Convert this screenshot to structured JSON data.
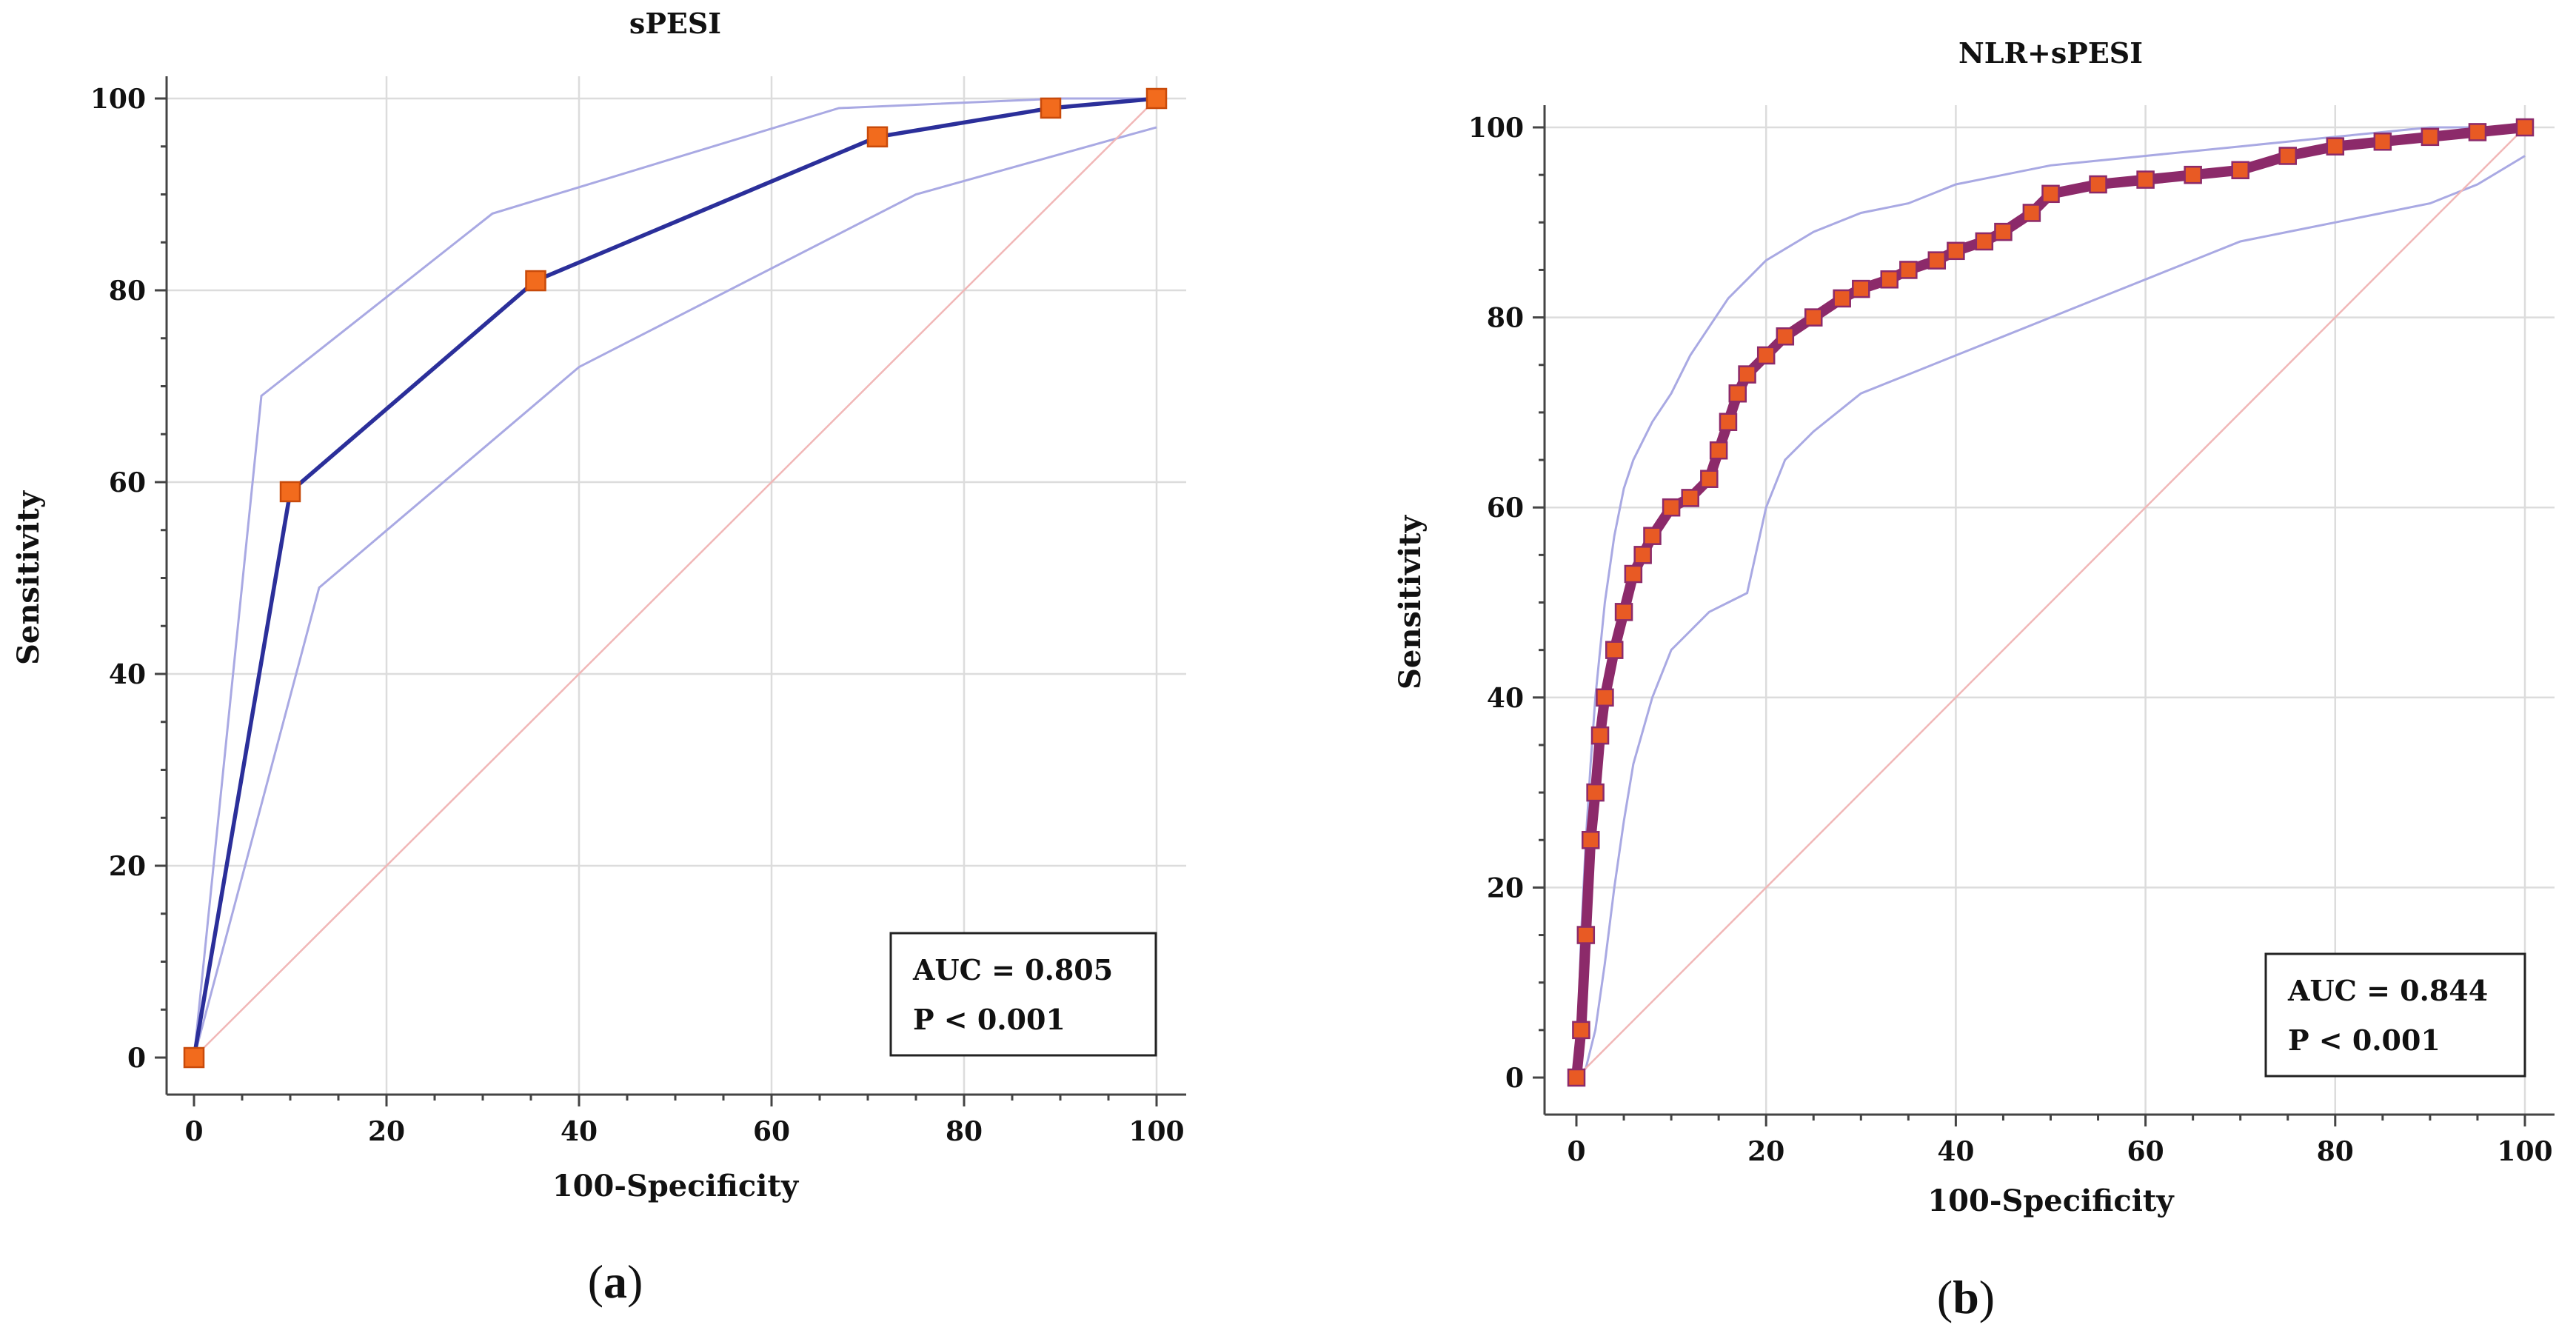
{
  "chart_data": [
    {
      "panel_label": "a",
      "type": "line",
      "title": "sPESI",
      "xlabel": "100-Specificity",
      "ylabel": "Sensitivity",
      "xlim": [
        0,
        100
      ],
      "ylim": [
        0,
        100
      ],
      "xticks": [
        0,
        20,
        40,
        60,
        80,
        100
      ],
      "yticks": [
        0,
        20,
        40,
        60,
        80,
        100
      ],
      "grid": true,
      "colors": {
        "roc": "#2b2f9a",
        "ci": "#a9a9e3",
        "ref": "#f1b7b7",
        "marker": "#f26b1d",
        "marker_edge": "#c84a0a"
      },
      "series": [
        {
          "name": "ROC",
          "x": [
            0,
            10,
            35.5,
            71,
            89,
            100
          ],
          "y": [
            0,
            59,
            81,
            96,
            99,
            100
          ],
          "markers": true
        },
        {
          "name": "upper 95% CI",
          "x": [
            0,
            7,
            31,
            67,
            90,
            100
          ],
          "y": [
            0,
            69,
            88,
            99,
            100,
            100
          ]
        },
        {
          "name": "lower 95% CI",
          "x": [
            0,
            13,
            40,
            75,
            100
          ],
          "y": [
            0,
            49,
            72,
            90,
            97
          ]
        },
        {
          "name": "reference",
          "x": [
            0,
            100
          ],
          "y": [
            0,
            100
          ]
        }
      ],
      "annotation": {
        "auc": "AUC = 0.805",
        "p": "P < 0.001"
      },
      "legend_position": "bottom-right"
    },
    {
      "panel_label": "b",
      "type": "line",
      "title": "NLR+sPESI",
      "xlabel": "100-Specificity",
      "ylabel": "Sensitivity",
      "xlim": [
        0,
        100
      ],
      "ylim": [
        0,
        100
      ],
      "xticks": [
        0,
        20,
        40,
        60,
        80,
        100
      ],
      "yticks": [
        0,
        20,
        40,
        60,
        80,
        100
      ],
      "grid": true,
      "colors": {
        "roc": "#8c2a6a",
        "ci": "#a9a9e3",
        "ref": "#f1b7b7",
        "marker": "#e85a24",
        "marker_edge": "#8c2a6a"
      },
      "series": [
        {
          "name": "ROC",
          "x": [
            0,
            0.5,
            1,
            1.5,
            2,
            2.5,
            3,
            4,
            5,
            6,
            7,
            8,
            10,
            12,
            14,
            15,
            16,
            17,
            18,
            20,
            22,
            25,
            28,
            30,
            33,
            35,
            38,
            40,
            43,
            45,
            48,
            50,
            55,
            60,
            65,
            70,
            75,
            80,
            85,
            90,
            95,
            100
          ],
          "y": [
            0,
            5,
            15,
            25,
            30,
            36,
            40,
            45,
            49,
            53,
            55,
            57,
            60,
            61,
            63,
            66,
            69,
            72,
            74,
            76,
            78,
            80,
            82,
            83,
            84,
            85,
            86,
            87,
            88,
            89,
            91,
            93,
            94,
            94.5,
            95,
            95.5,
            97,
            98,
            98.5,
            99,
            99.5,
            100
          ],
          "markers": true
        },
        {
          "name": "upper 95% CI",
          "x": [
            0,
            0.5,
            1,
            1.5,
            2,
            3,
            4,
            5,
            6,
            8,
            10,
            12,
            14,
            16,
            18,
            20,
            25,
            30,
            35,
            40,
            45,
            50,
            55,
            60,
            65,
            70,
            75,
            80,
            85,
            90,
            95,
            100
          ],
          "y": [
            0,
            15,
            25,
            33,
            40,
            50,
            57,
            62,
            65,
            69,
            72,
            76,
            79,
            82,
            84,
            86,
            89,
            91,
            92,
            94,
            95,
            96,
            96.5,
            97,
            97.5,
            98,
            98.5,
            99,
            99.5,
            100,
            100,
            100
          ]
        },
        {
          "name": "lower 95% CI",
          "x": [
            0,
            1,
            2,
            3,
            4,
            5,
            6,
            8,
            10,
            12,
            14,
            16,
            18,
            20,
            22,
            25,
            30,
            35,
            40,
            45,
            50,
            55,
            60,
            65,
            70,
            75,
            80,
            85,
            90,
            95,
            100
          ],
          "y": [
            0,
            1,
            5,
            12,
            20,
            27,
            33,
            40,
            45,
            47,
            49,
            50,
            51,
            60,
            65,
            68,
            72,
            74,
            76,
            78,
            80,
            82,
            84,
            86,
            88,
            89,
            90,
            91,
            92,
            94,
            97
          ]
        },
        {
          "name": "reference",
          "x": [
            0,
            100
          ],
          "y": [
            0,
            100
          ]
        }
      ],
      "annotation": {
        "auc": "AUC = 0.844",
        "p": "P < 0.001"
      },
      "legend_position": "bottom-right"
    }
  ]
}
